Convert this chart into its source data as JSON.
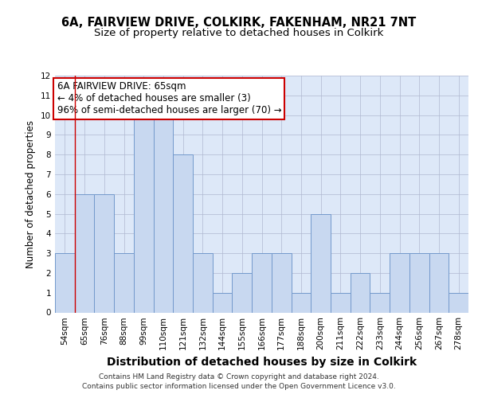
{
  "title1": "6A, FAIRVIEW DRIVE, COLKIRK, FAKENHAM, NR21 7NT",
  "title2": "Size of property relative to detached houses in Colkirk",
  "xlabel": "Distribution of detached houses by size in Colkirk",
  "ylabel": "Number of detached properties",
  "categories": [
    "54sqm",
    "65sqm",
    "76sqm",
    "88sqm",
    "99sqm",
    "110sqm",
    "121sqm",
    "132sqm",
    "144sqm",
    "155sqm",
    "166sqm",
    "177sqm",
    "188sqm",
    "200sqm",
    "211sqm",
    "222sqm",
    "233sqm",
    "244sqm",
    "256sqm",
    "267sqm",
    "278sqm"
  ],
  "values": [
    3,
    6,
    6,
    3,
    10,
    10,
    8,
    3,
    1,
    2,
    3,
    3,
    1,
    5,
    1,
    2,
    1,
    3,
    3,
    3,
    1
  ],
  "bar_color": "#c8d8f0",
  "bar_edge_color": "#7399cc",
  "highlight_index": 1,
  "highlight_line_color": "#cc0000",
  "annotation_line1": "6A FAIRVIEW DRIVE: 65sqm",
  "annotation_line2": "← 4% of detached houses are smaller (3)",
  "annotation_line3": "96% of semi-detached houses are larger (70) →",
  "annotation_box_color": "#cc0000",
  "ylim": [
    0,
    12
  ],
  "yticks": [
    0,
    1,
    2,
    3,
    4,
    5,
    6,
    7,
    8,
    9,
    10,
    11,
    12
  ],
  "footer1": "Contains HM Land Registry data © Crown copyright and database right 2024.",
  "footer2": "Contains public sector information licensed under the Open Government Licence v3.0.",
  "bg_color": "#dde8f8",
  "grid_color": "#b0b8d0",
  "title1_fontsize": 10.5,
  "title2_fontsize": 9.5,
  "xlabel_fontsize": 10,
  "ylabel_fontsize": 8.5,
  "tick_fontsize": 7.5,
  "annotation_fontsize": 8.5,
  "footer_fontsize": 6.5
}
